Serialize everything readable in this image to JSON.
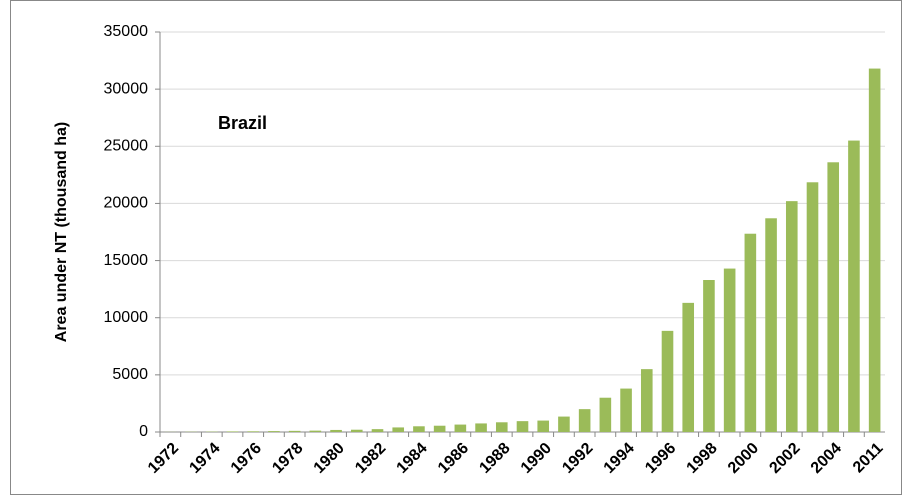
{
  "chart_data": {
    "type": "bar",
    "y_label": "Area under NT (thousand ha)",
    "annotation": "Brazil",
    "categories": [
      "1972",
      null,
      "1974",
      null,
      "1976",
      null,
      "1978",
      null,
      "1980",
      null,
      "1982",
      null,
      "1984",
      null,
      "1986",
      null,
      "1988",
      null,
      "1990",
      null,
      "1992",
      null,
      "1994",
      null,
      "1996",
      null,
      "1998",
      null,
      "2000",
      null,
      "2002",
      null,
      "2004",
      null,
      "2011"
    ],
    "values": [
      10,
      20,
      30,
      50,
      60,
      80,
      100,
      120,
      180,
      200,
      250,
      400,
      500,
      550,
      650,
      750,
      850,
      950,
      1000,
      1350,
      2000,
      3000,
      3800,
      5500,
      8850,
      11300,
      13300,
      14300,
      17350,
      18700,
      20200,
      21850,
      23600,
      25500,
      31800
    ],
    "color": "#9bbb59",
    "ylim": [
      0,
      35000
    ],
    "yticks": [
      0,
      5000,
      10000,
      15000,
      20000,
      25000,
      30000,
      35000
    ],
    "grid": true
  }
}
